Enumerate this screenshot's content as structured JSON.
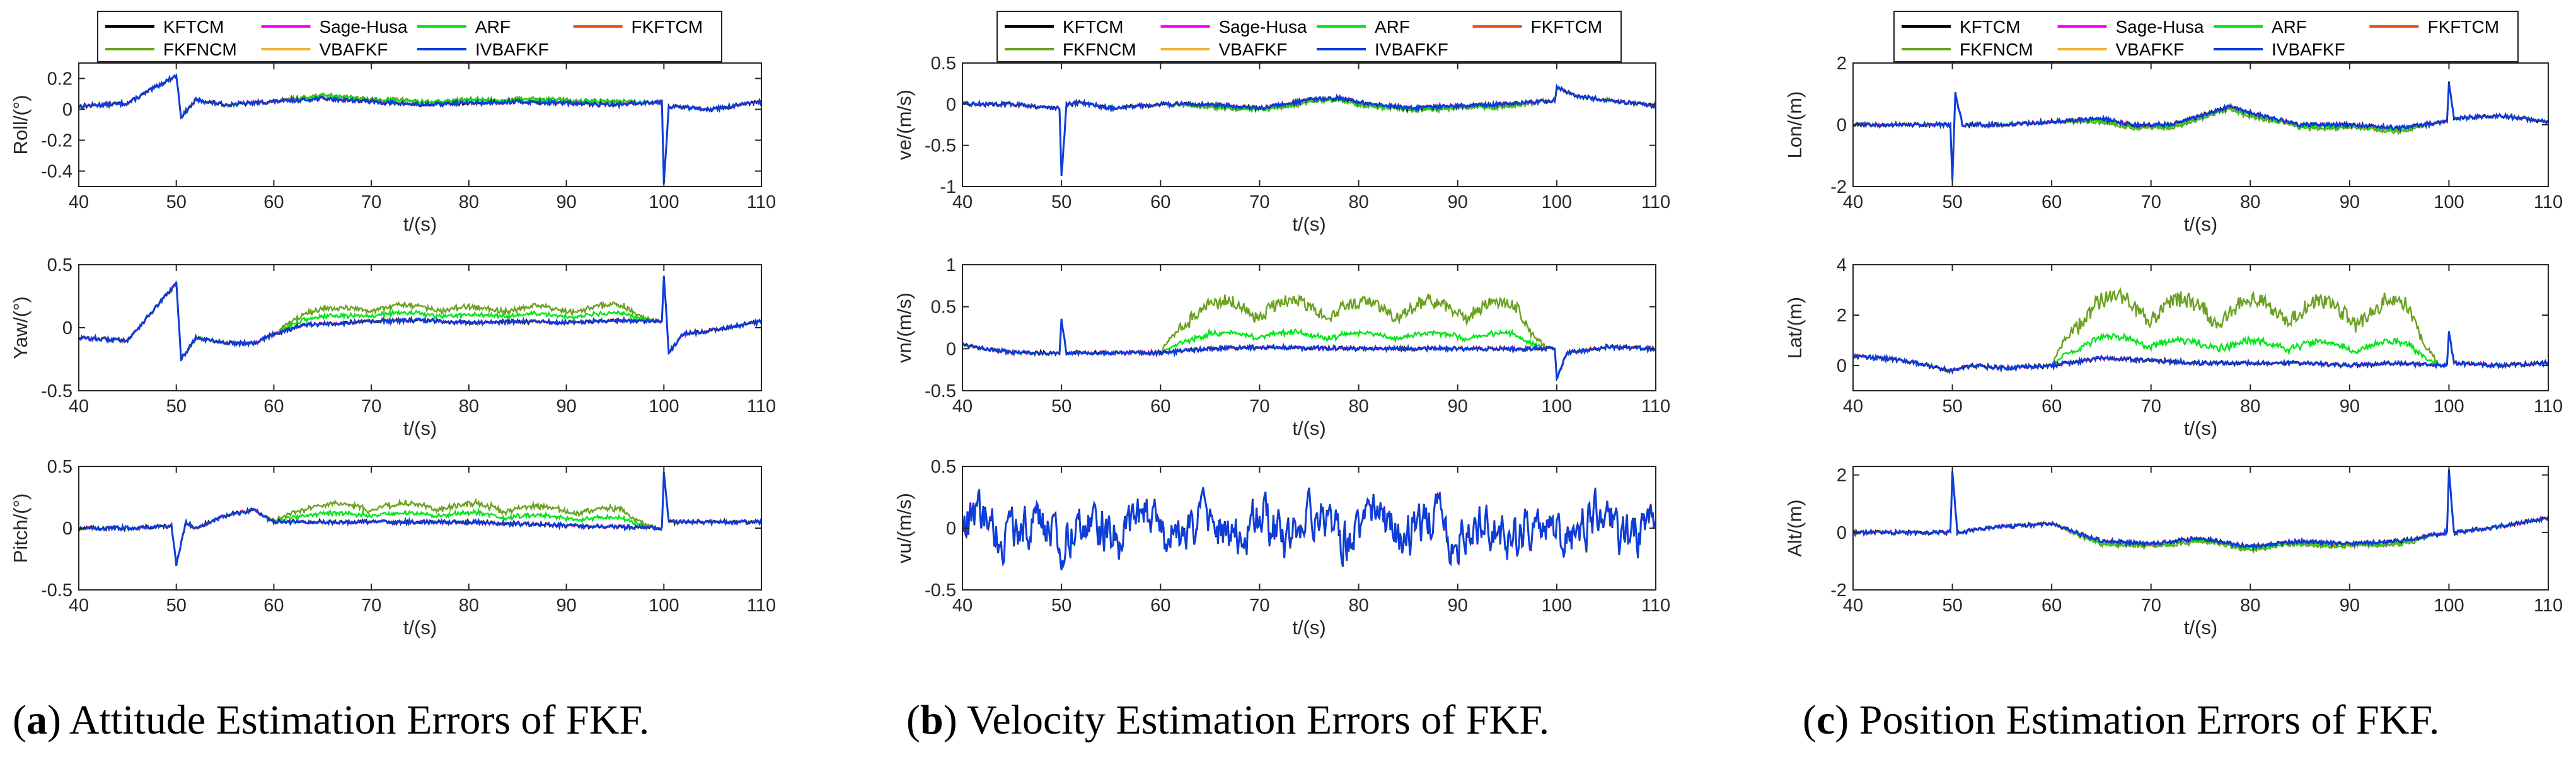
{
  "legend": {
    "entries": [
      {
        "name": "KFTCM",
        "color": "#000000"
      },
      {
        "name": "Sage-Husa",
        "color": "#ff00ff"
      },
      {
        "name": "ARF",
        "color": "#00e61a"
      },
      {
        "name": "FKFTCM",
        "color": "#e8551a"
      },
      {
        "name": "FKFNCM",
        "color": "#6aa120"
      },
      {
        "name": "VBAFKF",
        "color": "#f2b235"
      },
      {
        "name": "IVBAFKF",
        "color": "#0d3ed9"
      }
    ]
  },
  "x_label": "t/(s)",
  "x_ticks": [
    40,
    50,
    60,
    70,
    80,
    90,
    100,
    110
  ],
  "captions": [
    {
      "letter": "a",
      "text": ") Attitude Estimation Errors of FKF."
    },
    {
      "letter": "b",
      "text": ") Velocity Estimation Errors of FKF."
    },
    {
      "letter": "c",
      "text": ") Position Estimation Errors of FKF."
    }
  ],
  "chart_data": [
    {
      "type": "line",
      "panel": "a1",
      "title": "",
      "xlabel": "t/(s)",
      "ylabel": "Roll/(°)",
      "xlim": [
        40,
        110
      ],
      "ylim": [
        -0.5,
        0.3
      ],
      "y_ticks": [
        -0.4,
        -0.2,
        0,
        0.2
      ],
      "y_tick_labels": [
        "-0.4",
        "-0.2",
        "0",
        "0.2"
      ],
      "series_notes": "All seven estimators overlap near 0 with a spike to -0.48 at t=100 and a burst at t=50.",
      "anchors": [
        [
          40,
          0.02
        ],
        [
          45,
          0.04
        ],
        [
          50,
          0.22
        ],
        [
          50.5,
          -0.05
        ],
        [
          52,
          0.06
        ],
        [
          55,
          0.03
        ],
        [
          60,
          0.05
        ],
        [
          65,
          0.07
        ],
        [
          70,
          0.05
        ],
        [
          75,
          0.03
        ],
        [
          80,
          0.04
        ],
        [
          85,
          0.05
        ],
        [
          90,
          0.04
        ],
        [
          95,
          0.03
        ],
        [
          99.8,
          0.05
        ],
        [
          100,
          -0.48
        ],
        [
          100.5,
          0.02
        ],
        [
          105,
          0.0
        ],
        [
          110,
          0.05
        ]
      ],
      "offsets": {
        "FKFNCM": 0.02,
        "ARF": 0.015
      }
    },
    {
      "type": "line",
      "panel": "a2",
      "xlabel": "t/(s)",
      "ylabel": "Yaw/(°)",
      "xlim": [
        40,
        110
      ],
      "ylim": [
        -0.5,
        0.5
      ],
      "y_ticks": [
        -0.5,
        0,
        0.5
      ],
      "y_tick_labels": [
        "-0.5",
        "0",
        "0.5"
      ],
      "anchors": [
        [
          40,
          -0.08
        ],
        [
          45,
          -0.1
        ],
        [
          50,
          0.35
        ],
        [
          50.5,
          -0.25
        ],
        [
          52,
          -0.08
        ],
        [
          55,
          -0.12
        ],
        [
          58,
          -0.12
        ],
        [
          60,
          -0.05
        ],
        [
          63,
          0.02
        ],
        [
          70,
          0.05
        ],
        [
          75,
          0.06
        ],
        [
          80,
          0.04
        ],
        [
          85,
          0.05
        ],
        [
          90,
          0.04
        ],
        [
          95,
          0.06
        ],
        [
          99.8,
          0.05
        ],
        [
          100,
          0.42
        ],
        [
          100.5,
          -0.2
        ],
        [
          102,
          -0.05
        ],
        [
          105,
          -0.02
        ],
        [
          110,
          0.05
        ]
      ],
      "offsets": {
        "FKFNCM": 0.1,
        "ARF": 0.05
      }
    },
    {
      "type": "line",
      "panel": "a3",
      "xlabel": "t/(s)",
      "ylabel": "Pitch/(°)",
      "xlim": [
        40,
        110
      ],
      "ylim": [
        -0.5,
        0.5
      ],
      "y_ticks": [
        -0.5,
        0,
        0.5
      ],
      "y_tick_labels": [
        "-0.5",
        "0",
        "0.5"
      ],
      "anchors": [
        [
          40,
          0.0
        ],
        [
          45,
          0.0
        ],
        [
          49.5,
          0.02
        ],
        [
          50,
          -0.3
        ],
        [
          51,
          0.05
        ],
        [
          52,
          0.0
        ],
        [
          55,
          0.1
        ],
        [
          58,
          0.15
        ],
        [
          60,
          0.05
        ],
        [
          65,
          0.05
        ],
        [
          70,
          0.05
        ],
        [
          80,
          0.05
        ],
        [
          90,
          0.02
        ],
        [
          99.8,
          0.0
        ],
        [
          100,
          0.45
        ],
        [
          100.5,
          0.05
        ],
        [
          105,
          0.05
        ],
        [
          110,
          0.05
        ]
      ],
      "offsets": {
        "FKFNCM": 0.12,
        "ARF": 0.06
      }
    },
    {
      "type": "line",
      "panel": "b1",
      "xlabel": "t/(s)",
      "ylabel": "ve/(m/s)",
      "xlim": [
        40,
        110
      ],
      "ylim": [
        -1,
        0.5
      ],
      "y_ticks": [
        -1,
        -0.5,
        0,
        0.5
      ],
      "y_tick_labels": [
        "-1",
        "-0.5",
        "0",
        "0.5"
      ],
      "anchors": [
        [
          40,
          0.0
        ],
        [
          45,
          0.0
        ],
        [
          49.8,
          -0.05
        ],
        [
          50,
          -0.88
        ],
        [
          50.5,
          0.0
        ],
        [
          52,
          0.02
        ],
        [
          55,
          -0.05
        ],
        [
          60,
          0.0
        ],
        [
          65,
          0.0
        ],
        [
          70,
          -0.05
        ],
        [
          75,
          0.05
        ],
        [
          78,
          0.08
        ],
        [
          80,
          0.02
        ],
        [
          85,
          -0.05
        ],
        [
          90,
          -0.02
        ],
        [
          95,
          0.0
        ],
        [
          99.8,
          0.05
        ],
        [
          100,
          0.2
        ],
        [
          102,
          0.1
        ],
        [
          105,
          0.05
        ],
        [
          110,
          -0.02
        ]
      ],
      "offsets": {
        "FKFNCM": -0.03,
        "ARF": -0.02
      }
    },
    {
      "type": "line",
      "panel": "b2",
      "xlabel": "t/(s)",
      "ylabel": "vn/(m/s)",
      "xlim": [
        40,
        110
      ],
      "ylim": [
        -0.5,
        1
      ],
      "y_ticks": [
        -0.5,
        0,
        0.5,
        1
      ],
      "y_tick_labels": [
        "-0.5",
        "0",
        "0.5",
        "1"
      ],
      "anchors": [
        [
          40,
          0.05
        ],
        [
          45,
          -0.05
        ],
        [
          49.8,
          -0.05
        ],
        [
          50,
          0.35
        ],
        [
          50.5,
          -0.05
        ],
        [
          55,
          -0.05
        ],
        [
          60,
          -0.05
        ],
        [
          65,
          0.0
        ],
        [
          70,
          0.02
        ],
        [
          80,
          0.0
        ],
        [
          90,
          0.0
        ],
        [
          99.8,
          0.0
        ],
        [
          100,
          -0.35
        ],
        [
          101,
          -0.05
        ],
        [
          105,
          0.02
        ],
        [
          110,
          0.0
        ]
      ],
      "offsets": {
        "FKFNCM": 0.45,
        "ARF": 0.15
      }
    },
    {
      "type": "line",
      "panel": "b3",
      "xlabel": "t/(s)",
      "ylabel": "vu/(m/s)",
      "xlim": [
        40,
        110
      ],
      "ylim": [
        -0.5,
        0.5
      ],
      "y_ticks": [
        -0.5,
        0,
        0.5
      ],
      "y_tick_labels": [
        "-0.5",
        "0",
        "0.5"
      ],
      "anchors": [
        [
          40,
          0.0
        ],
        [
          110,
          0.0
        ]
      ],
      "noise_amplitude": 0.25,
      "offsets": {
        "FKFNCM": 0.0,
        "ARF": 0.0
      }
    },
    {
      "type": "line",
      "panel": "c1",
      "xlabel": "t/(s)",
      "ylabel": "Lon/(m)",
      "xlim": [
        40,
        110
      ],
      "ylim": [
        -2,
        2
      ],
      "y_ticks": [
        -2,
        0,
        2
      ],
      "y_tick_labels": [
        "-2",
        "0",
        "2"
      ],
      "anchors": [
        [
          40,
          0.0
        ],
        [
          45,
          0.0
        ],
        [
          49.8,
          0.0
        ],
        [
          50,
          -1.8
        ],
        [
          50.3,
          1.0
        ],
        [
          51,
          0.0
        ],
        [
          55,
          0.0
        ],
        [
          60,
          0.1
        ],
        [
          65,
          0.2
        ],
        [
          68,
          0.0
        ],
        [
          72,
          0.0
        ],
        [
          75,
          0.3
        ],
        [
          78,
          0.6
        ],
        [
          80,
          0.4
        ],
        [
          85,
          0.0
        ],
        [
          90,
          0.0
        ],
        [
          95,
          -0.1
        ],
        [
          99.8,
          0.1
        ],
        [
          100,
          1.4
        ],
        [
          100.5,
          0.2
        ],
        [
          105,
          0.3
        ],
        [
          110,
          0.1
        ]
      ],
      "offsets": {
        "FKFNCM": -0.1,
        "ARF": -0.05
      }
    },
    {
      "type": "line",
      "panel": "c2",
      "xlabel": "t/(s)",
      "ylabel": "Lat/(m)",
      "xlim": [
        40,
        110
      ],
      "ylim": [
        -1,
        4
      ],
      "y_ticks": [
        0,
        2,
        4
      ],
      "y_tick_labels": [
        "0",
        "2",
        "4"
      ],
      "anchors": [
        [
          40,
          0.4
        ],
        [
          45,
          0.2
        ],
        [
          50,
          -0.2
        ],
        [
          52,
          0.0
        ],
        [
          55,
          -0.1
        ],
        [
          60,
          0.0
        ],
        [
          65,
          0.3
        ],
        [
          70,
          0.2
        ],
        [
          75,
          0.1
        ],
        [
          80,
          0.1
        ],
        [
          85,
          0.1
        ],
        [
          90,
          0.0
        ],
        [
          95,
          0.1
        ],
        [
          99.8,
          0.0
        ],
        [
          100,
          1.3
        ],
        [
          100.5,
          0.1
        ],
        [
          105,
          0.0
        ],
        [
          110,
          0.1
        ]
      ],
      "offsets": {
        "FKFNCM": 2.0,
        "ARF": 0.7
      }
    },
    {
      "type": "line",
      "panel": "c3",
      "xlabel": "t/(s)",
      "ylabel": "Alt/(m)",
      "xlim": [
        40,
        110
      ],
      "ylim": [
        -2,
        2.3
      ],
      "y_ticks": [
        -2,
        0,
        2
      ],
      "y_tick_labels": [
        "-2",
        "0",
        "2"
      ],
      "anchors": [
        [
          40,
          0.0
        ],
        [
          45,
          0.0
        ],
        [
          49.8,
          0.0
        ],
        [
          50,
          2.1
        ],
        [
          50.5,
          0.0
        ],
        [
          55,
          0.2
        ],
        [
          60,
          0.3
        ],
        [
          65,
          -0.3
        ],
        [
          70,
          -0.4
        ],
        [
          75,
          -0.2
        ],
        [
          80,
          -0.5
        ],
        [
          85,
          -0.3
        ],
        [
          90,
          -0.4
        ],
        [
          95,
          -0.3
        ],
        [
          99.8,
          0.0
        ],
        [
          100,
          2.2
        ],
        [
          100.5,
          0.0
        ],
        [
          105,
          0.2
        ],
        [
          110,
          0.5
        ]
      ],
      "offsets": {
        "FKFNCM": -0.1,
        "ARF": -0.05
      }
    }
  ]
}
